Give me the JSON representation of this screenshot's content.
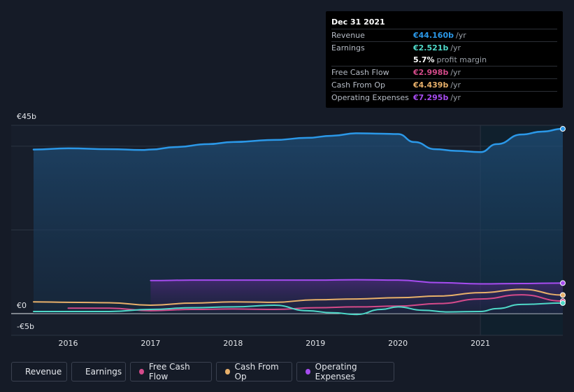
{
  "chart_data": {
    "type": "line",
    "y_axis_labels": [
      "€45b",
      "€0",
      "-€5b"
    ],
    "ylim": [
      -5,
      45
    ],
    "x_tick_labels": [
      "2016",
      "2017",
      "2018",
      "2019",
      "2020",
      "2021"
    ],
    "x_tick_values": [
      2016,
      2017,
      2018,
      2019,
      2020,
      2021
    ],
    "xlim": [
      2015.5,
      2022.0
    ],
    "forecast_shade_start": 2021,
    "series": [
      {
        "name": "Revenue",
        "color": "#2b98e8",
        "x": [
          2015.58,
          2016.0,
          2016.5,
          2016.9,
          2017.0,
          2017.3,
          2017.7,
          2018.0,
          2018.5,
          2018.9,
          2019.2,
          2019.5,
          2019.8,
          2020.0,
          2020.2,
          2020.45,
          2020.7,
          2021.0,
          2021.2,
          2021.5,
          2021.75,
          2022.0
        ],
        "y": [
          39.2,
          39.5,
          39.3,
          39.1,
          39.2,
          39.8,
          40.5,
          41.0,
          41.5,
          42.0,
          42.5,
          43.1,
          43.0,
          42.9,
          41.0,
          39.3,
          38.9,
          38.6,
          40.5,
          42.8,
          43.5,
          44.16
        ]
      },
      {
        "name": "Earnings",
        "color": "#4fd8c8",
        "x": [
          2015.58,
          2016.5,
          2017.0,
          2017.5,
          2018.0,
          2018.5,
          2018.9,
          2019.2,
          2019.5,
          2019.8,
          2020.0,
          2020.3,
          2020.6,
          2021.0,
          2021.2,
          2021.5,
          2022.0
        ],
        "y": [
          0.5,
          0.5,
          1.0,
          1.4,
          1.6,
          2.0,
          0.7,
          0.2,
          -0.2,
          1.0,
          1.6,
          0.8,
          0.4,
          0.5,
          1.2,
          2.2,
          2.521
        ]
      },
      {
        "name": "Free Cash Flow",
        "color": "#d44a8a",
        "x": [
          2016.0,
          2016.5,
          2017.0,
          2017.5,
          2018.0,
          2018.5,
          2019.0,
          2019.5,
          2020.0,
          2020.5,
          2021.0,
          2021.5,
          2022.0
        ],
        "y": [
          1.3,
          1.3,
          0.7,
          1.0,
          1.1,
          1.0,
          1.4,
          1.6,
          1.8,
          2.4,
          3.5,
          4.5,
          2.998
        ]
      },
      {
        "name": "Cash From Op",
        "color": "#e8b06a",
        "x": [
          2015.58,
          2016.0,
          2016.5,
          2017.0,
          2017.5,
          2018.0,
          2018.5,
          2019.0,
          2019.5,
          2020.0,
          2020.5,
          2021.0,
          2021.5,
          2022.0
        ],
        "y": [
          2.8,
          2.7,
          2.6,
          2.0,
          2.5,
          2.8,
          2.7,
          3.3,
          3.5,
          3.8,
          4.2,
          5.0,
          5.8,
          4.439
        ]
      },
      {
        "name": "Operating Expenses",
        "color": "#a64cf0",
        "x": [
          2017.0,
          2017.5,
          2018.0,
          2018.5,
          2019.0,
          2019.5,
          2020.0,
          2020.5,
          2021.0,
          2021.5,
          2022.0
        ],
        "y": [
          7.9,
          8.0,
          8.0,
          8.0,
          8.0,
          8.1,
          8.0,
          7.4,
          7.1,
          7.2,
          7.295
        ]
      }
    ]
  },
  "tooltip": {
    "date": "Dec 31 2021",
    "rows": [
      {
        "label": "Revenue",
        "value": "€44.160b",
        "unit": "/yr",
        "color": "#2b98e8"
      },
      {
        "label": "Earnings",
        "value": "€2.521b",
        "unit": "/yr",
        "color": "#4fd8c8"
      },
      {
        "label": "",
        "value": "5.7%",
        "unit": "profit margin",
        "color": "#ffffff"
      },
      {
        "label": "Free Cash Flow",
        "value": "€2.998b",
        "unit": "/yr",
        "color": "#d44a8a"
      },
      {
        "label": "Cash From Op",
        "value": "€4.439b",
        "unit": "/yr",
        "color": "#e8b06a"
      },
      {
        "label": "Operating Expenses",
        "value": "€7.295b",
        "unit": "/yr",
        "color": "#a64cf0"
      }
    ]
  },
  "legend": [
    {
      "label": "Revenue",
      "color": "#2b98e8"
    },
    {
      "label": "Earnings",
      "color": "#4fd8c8"
    },
    {
      "label": "Free Cash Flow",
      "color": "#d44a8a"
    },
    {
      "label": "Cash From Op",
      "color": "#e8b06a"
    },
    {
      "label": "Operating Expenses",
      "color": "#a64cf0"
    }
  ]
}
